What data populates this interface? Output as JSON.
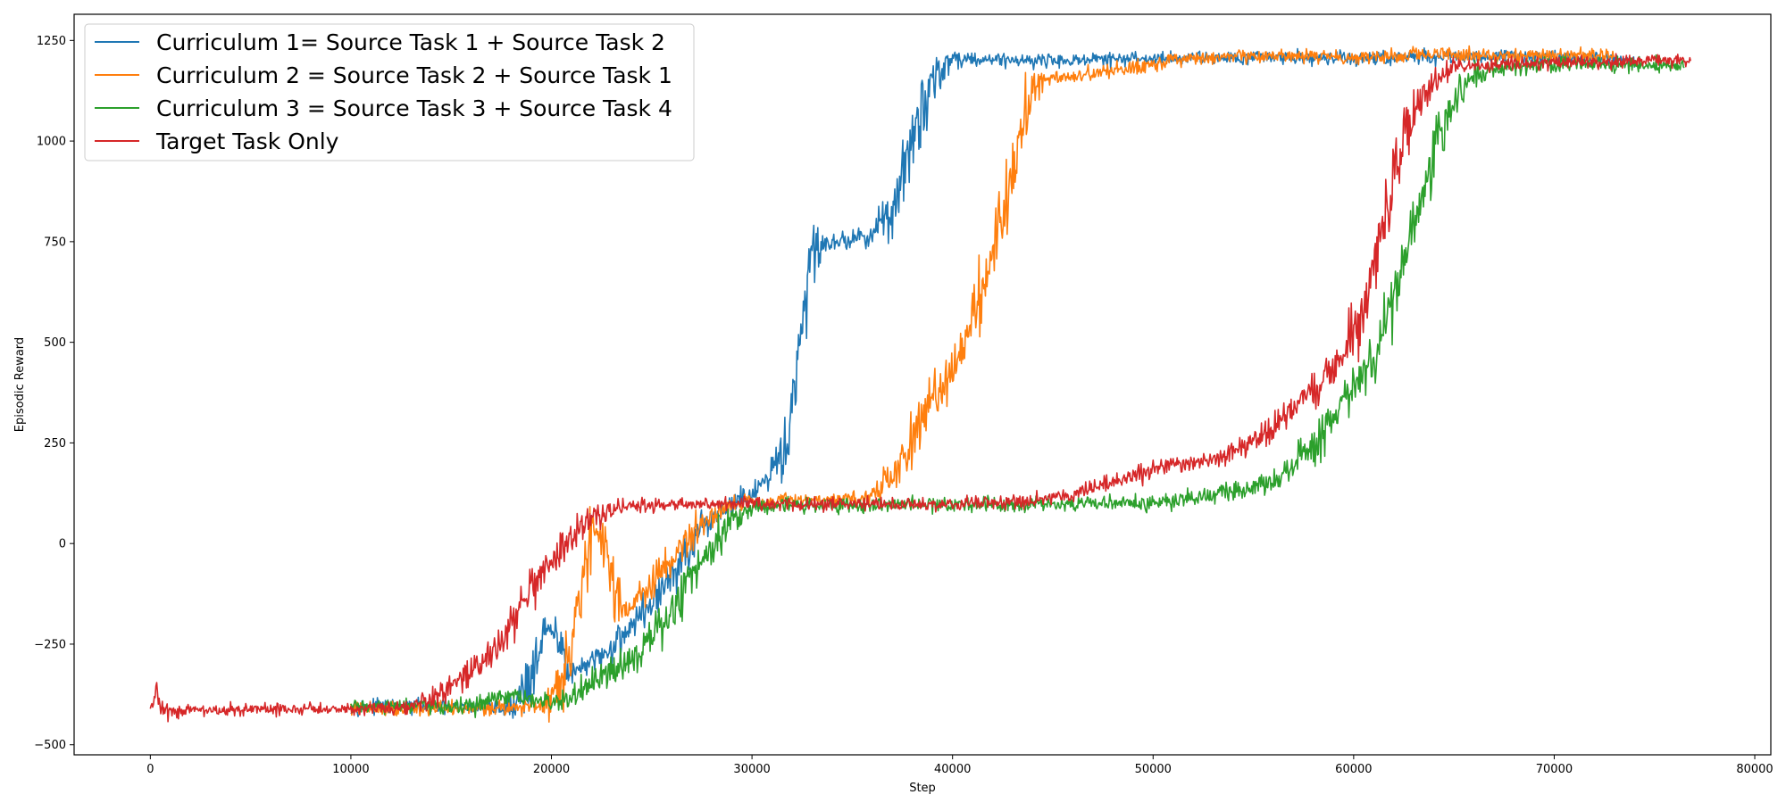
{
  "chart_data": {
    "type": "line",
    "xlabel": "Step",
    "ylabel": "Episodic Reward",
    "xlim": [
      -3800,
      80800
    ],
    "ylim": [
      -525,
      1315
    ],
    "xticks": [
      0,
      10000,
      20000,
      30000,
      40000,
      50000,
      60000,
      70000,
      80000
    ],
    "xtick_labels": [
      "0",
      "10000",
      "20000",
      "30000",
      "40000",
      "50000",
      "60000",
      "70000",
      "80000"
    ],
    "yticks": [
      -500,
      -250,
      0,
      250,
      500,
      750,
      1000,
      1250
    ],
    "ytick_labels": [
      "−500",
      "−250",
      "0",
      "250",
      "500",
      "750",
      "1000",
      "1250"
    ],
    "grid": false,
    "legend_position": "upper-left",
    "series": [
      {
        "name": "Curriculum 1= Source Task 1 + Source Task 2",
        "color": "#1f77b4",
        "noise": 14,
        "points": [
          [
            10000,
            -405
          ],
          [
            18000,
            -408
          ],
          [
            19000,
            -330
          ],
          [
            19500,
            -235
          ],
          [
            20000,
            -215
          ],
          [
            20500,
            -260
          ],
          [
            21000,
            -320
          ],
          [
            22000,
            -300
          ],
          [
            23000,
            -260
          ],
          [
            24000,
            -200
          ],
          [
            25000,
            -150
          ],
          [
            26000,
            -80
          ],
          [
            27000,
            -10
          ],
          [
            28000,
            60
          ],
          [
            29000,
            100
          ],
          [
            30000,
            120
          ],
          [
            31000,
            160
          ],
          [
            31500,
            220
          ],
          [
            32000,
            330
          ],
          [
            32500,
            520
          ],
          [
            33000,
            740
          ],
          [
            34000,
            750
          ],
          [
            35000,
            755
          ],
          [
            36000,
            770
          ],
          [
            37000,
            830
          ],
          [
            38000,
            990
          ],
          [
            39000,
            1160
          ],
          [
            40000,
            1205
          ],
          [
            45000,
            1200
          ],
          [
            50000,
            1205
          ],
          [
            55000,
            1210
          ],
          [
            60000,
            1205
          ],
          [
            65000,
            1210
          ],
          [
            70000,
            1210
          ],
          [
            74000,
            1205
          ]
        ]
      },
      {
        "name": "Curriculum 2 = Source Task 2 + Source Task 1",
        "color": "#ff7f0e",
        "noise": 14,
        "points": [
          [
            10000,
            -410
          ],
          [
            16000,
            -410
          ],
          [
            19000,
            -405
          ],
          [
            20000,
            -390
          ],
          [
            21000,
            -250
          ],
          [
            21500,
            -80
          ],
          [
            22000,
            20
          ],
          [
            22500,
            20
          ],
          [
            23000,
            -80
          ],
          [
            23500,
            -150
          ],
          [
            24000,
            -160
          ],
          [
            25000,
            -100
          ],
          [
            26000,
            -40
          ],
          [
            27000,
            20
          ],
          [
            28000,
            70
          ],
          [
            29000,
            100
          ],
          [
            30000,
            105
          ],
          [
            35000,
            110
          ],
          [
            36000,
            120
          ],
          [
            37000,
            160
          ],
          [
            38000,
            260
          ],
          [
            39000,
            350
          ],
          [
            40000,
            440
          ],
          [
            41000,
            560
          ],
          [
            42000,
            720
          ],
          [
            43000,
            930
          ],
          [
            44000,
            1140
          ],
          [
            45000,
            1160
          ],
          [
            47000,
            1165
          ],
          [
            49000,
            1185
          ],
          [
            51000,
            1200
          ],
          [
            55000,
            1210
          ],
          [
            60000,
            1210
          ],
          [
            65000,
            1215
          ],
          [
            70000,
            1212
          ],
          [
            73000,
            1212
          ]
        ]
      },
      {
        "name": "Curriculum 3 = Source Task 3 + Source Task 4",
        "color": "#2ca02c",
        "noise": 16,
        "points": [
          [
            10000,
            -405
          ],
          [
            16000,
            -405
          ],
          [
            17000,
            -390
          ],
          [
            18000,
            -380
          ],
          [
            19000,
            -390
          ],
          [
            20000,
            -395
          ],
          [
            21000,
            -385
          ],
          [
            22000,
            -350
          ],
          [
            23000,
            -320
          ],
          [
            24000,
            -280
          ],
          [
            25000,
            -240
          ],
          [
            26000,
            -170
          ],
          [
            27000,
            -80
          ],
          [
            28000,
            0
          ],
          [
            29000,
            60
          ],
          [
            30000,
            90
          ],
          [
            31000,
            95
          ],
          [
            35000,
            95
          ],
          [
            40000,
            98
          ],
          [
            45000,
            100
          ],
          [
            50000,
            100
          ],
          [
            53000,
            120
          ],
          [
            55000,
            140
          ],
          [
            56000,
            160
          ],
          [
            57000,
            190
          ],
          [
            58000,
            240
          ],
          [
            59000,
            310
          ],
          [
            60000,
            390
          ],
          [
            61000,
            460
          ],
          [
            62000,
            580
          ],
          [
            63000,
            800
          ],
          [
            64000,
            980
          ],
          [
            65000,
            1100
          ],
          [
            66000,
            1160
          ],
          [
            67000,
            1185
          ],
          [
            70000,
            1190
          ],
          [
            73000,
            1190
          ],
          [
            76500,
            1185
          ]
        ]
      },
      {
        "name": "Target Task Only",
        "color": "#d62728",
        "noise": 13,
        "points": [
          [
            0,
            -410
          ],
          [
            200,
            -395
          ],
          [
            300,
            -345
          ],
          [
            400,
            -385
          ],
          [
            500,
            -405
          ],
          [
            1000,
            -415
          ],
          [
            5000,
            -413
          ],
          [
            10000,
            -410
          ],
          [
            13000,
            -405
          ],
          [
            14000,
            -390
          ],
          [
            15000,
            -360
          ],
          [
            16000,
            -320
          ],
          [
            17000,
            -270
          ],
          [
            18000,
            -200
          ],
          [
            19000,
            -120
          ],
          [
            20000,
            -60
          ],
          [
            21000,
            20
          ],
          [
            22000,
            60
          ],
          [
            23000,
            85
          ],
          [
            24000,
            95
          ],
          [
            30000,
            98
          ],
          [
            40000,
            98
          ],
          [
            43000,
            102
          ],
          [
            45000,
            115
          ],
          [
            48000,
            150
          ],
          [
            50000,
            185
          ],
          [
            53000,
            210
          ],
          [
            55000,
            250
          ],
          [
            56000,
            290
          ],
          [
            57000,
            340
          ],
          [
            58000,
            380
          ],
          [
            59000,
            440
          ],
          [
            60000,
            520
          ],
          [
            61000,
            700
          ],
          [
            62000,
            920
          ],
          [
            63000,
            1070
          ],
          [
            64000,
            1150
          ],
          [
            65000,
            1185
          ],
          [
            70000,
            1195
          ],
          [
            76800,
            1200
          ]
        ]
      }
    ]
  }
}
